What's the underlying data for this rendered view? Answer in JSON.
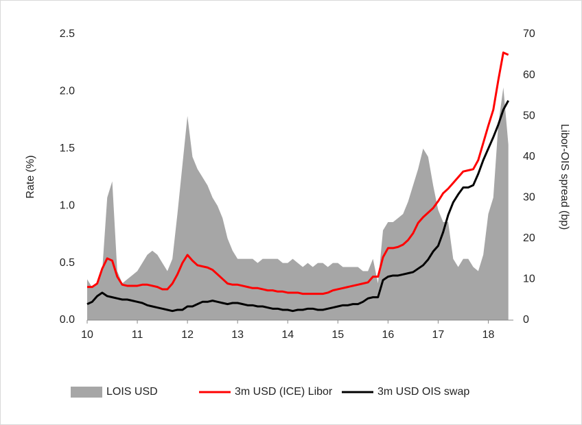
{
  "chart_data": {
    "type": "line",
    "y_label": "Rate (%)",
    "y2_label": "Libor-OIS spread (bp)",
    "xlim": [
      10,
      18.5
    ],
    "xticks": [
      10,
      11,
      12,
      13,
      14,
      15,
      16,
      17,
      18
    ],
    "ylim": [
      0,
      2.5
    ],
    "yticks": [
      {
        "value": 0,
        "label": "0.0"
      },
      0.5,
      {
        "value": 1,
        "label": "1.0"
      },
      1.5,
      {
        "value": 2,
        "label": "2.0"
      },
      2.5
    ],
    "y2lim": [
      0,
      70
    ],
    "y2ticks": [
      0,
      10,
      20,
      30,
      40,
      50,
      60,
      70
    ],
    "grid": false,
    "legend": "bottom",
    "x": [
      10.0,
      10.1,
      10.2,
      10.3,
      10.4,
      10.5,
      10.6,
      10.7,
      10.8,
      10.9,
      11.0,
      11.1,
      11.2,
      11.3,
      11.4,
      11.5,
      11.6,
      11.7,
      11.8,
      11.9,
      12.0,
      12.1,
      12.2,
      12.3,
      12.4,
      12.5,
      12.6,
      12.7,
      12.8,
      12.9,
      13.0,
      13.1,
      13.2,
      13.3,
      13.4,
      13.5,
      13.6,
      13.7,
      13.8,
      13.9,
      14.0,
      14.1,
      14.2,
      14.3,
      14.4,
      14.5,
      14.6,
      14.7,
      14.8,
      14.9,
      15.0,
      15.1,
      15.2,
      15.3,
      15.4,
      15.5,
      15.6,
      15.7,
      15.8,
      15.9,
      16.0,
      16.1,
      16.2,
      16.3,
      16.4,
      16.5,
      16.6,
      16.7,
      16.8,
      16.9,
      17.0,
      17.1,
      17.2,
      17.3,
      17.4,
      17.5,
      17.6,
      17.7,
      17.8,
      17.9,
      18.0,
      18.1,
      18.2,
      18.3,
      18.4
    ],
    "series": [
      {
        "name": "LOIS USD",
        "color": "#a6a6a6",
        "axis": "y2",
        "kind": "area",
        "values": [
          10,
          8,
          9,
          12,
          30,
          34,
          12,
          9,
          10,
          11,
          12,
          14,
          16,
          17,
          16,
          14,
          12,
          15,
          26,
          38,
          50,
          40,
          37,
          35,
          33,
          30,
          28,
          25,
          20,
          17,
          15,
          15,
          15,
          15,
          14,
          15,
          15,
          15,
          15,
          14,
          14,
          15,
          14,
          13,
          14,
          13,
          14,
          14,
          13,
          14,
          14,
          13,
          13,
          13,
          13,
          12,
          12,
          15,
          9,
          22,
          24,
          24,
          25,
          26,
          29,
          33,
          37,
          42,
          40,
          33,
          27,
          24,
          24,
          15,
          13,
          15,
          15,
          13,
          12,
          16,
          26,
          30,
          48,
          57,
          43
        ]
      },
      {
        "name": "3m USD (ICE) Libor",
        "color": "#ff0000",
        "kind": "line",
        "values": [
          0.29,
          0.29,
          0.32,
          0.45,
          0.54,
          0.52,
          0.38,
          0.31,
          0.3,
          0.3,
          0.3,
          0.31,
          0.31,
          0.3,
          0.29,
          0.27,
          0.27,
          0.32,
          0.4,
          0.5,
          0.57,
          0.52,
          0.48,
          0.47,
          0.46,
          0.44,
          0.4,
          0.36,
          0.32,
          0.31,
          0.31,
          0.3,
          0.29,
          0.28,
          0.28,
          0.27,
          0.26,
          0.26,
          0.25,
          0.25,
          0.24,
          0.24,
          0.24,
          0.23,
          0.23,
          0.23,
          0.23,
          0.23,
          0.24,
          0.26,
          0.27,
          0.28,
          0.29,
          0.3,
          0.31,
          0.32,
          0.33,
          0.38,
          0.38,
          0.55,
          0.63,
          0.63,
          0.64,
          0.66,
          0.7,
          0.76,
          0.85,
          0.9,
          0.94,
          0.98,
          1.04,
          1.11,
          1.15,
          1.2,
          1.25,
          1.3,
          1.31,
          1.32,
          1.4,
          1.55,
          1.7,
          1.84,
          2.1,
          2.34,
          2.32
        ]
      },
      {
        "name": "3m USD OIS swap",
        "color": "#000000",
        "kind": "line",
        "values": [
          0.14,
          0.16,
          0.21,
          0.24,
          0.21,
          0.2,
          0.19,
          0.18,
          0.18,
          0.17,
          0.16,
          0.15,
          0.13,
          0.12,
          0.11,
          0.1,
          0.09,
          0.08,
          0.09,
          0.09,
          0.12,
          0.12,
          0.14,
          0.16,
          0.16,
          0.17,
          0.16,
          0.15,
          0.14,
          0.15,
          0.15,
          0.14,
          0.13,
          0.13,
          0.12,
          0.12,
          0.11,
          0.1,
          0.1,
          0.09,
          0.09,
          0.08,
          0.09,
          0.09,
          0.1,
          0.1,
          0.09,
          0.09,
          0.1,
          0.11,
          0.12,
          0.13,
          0.13,
          0.14,
          0.14,
          0.16,
          0.19,
          0.2,
          0.2,
          0.35,
          0.38,
          0.39,
          0.39,
          0.4,
          0.41,
          0.42,
          0.45,
          0.48,
          0.53,
          0.6,
          0.65,
          0.77,
          0.92,
          1.03,
          1.1,
          1.16,
          1.16,
          1.18,
          1.28,
          1.4,
          1.5,
          1.6,
          1.71,
          1.84,
          1.92
        ]
      }
    ]
  }
}
